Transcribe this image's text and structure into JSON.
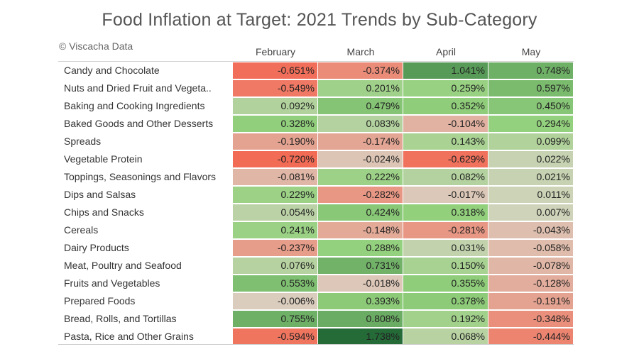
{
  "title": "Food Inflation at Target: 2021 Trends by Sub-Category",
  "credit": "© Viscacha Data",
  "chart_data": {
    "type": "heatmap",
    "title": "Food Inflation at Target: 2021 Trends by Sub-Category",
    "columns": [
      "February",
      "March",
      "April",
      "May"
    ],
    "rows": [
      {
        "label": "Candy and Chocolate",
        "values": [
          -0.651,
          -0.374,
          1.041,
          0.748
        ],
        "display": [
          "-0.651%",
          "-0.374%",
          "1.041%",
          "0.748%"
        ]
      },
      {
        "label": "Nuts and Dried Fruit and Vegeta..",
        "values": [
          -0.549,
          0.201,
          0.259,
          0.597
        ],
        "display": [
          "-0.549%",
          "0.201%",
          "0.259%",
          "0.597%"
        ]
      },
      {
        "label": "Baking and Cooking Ingredients",
        "values": [
          0.092,
          0.479,
          0.352,
          0.45
        ],
        "display": [
          "0.092%",
          "0.479%",
          "0.352%",
          "0.450%"
        ]
      },
      {
        "label": "Baked Goods and Other Desserts",
        "values": [
          0.328,
          0.083,
          -0.104,
          0.294
        ],
        "display": [
          "0.328%",
          "0.083%",
          "-0.104%",
          "0.294%"
        ]
      },
      {
        "label": "Spreads",
        "values": [
          -0.19,
          -0.174,
          0.143,
          0.099
        ],
        "display": [
          "-0.190%",
          "-0.174%",
          "0.143%",
          "0.099%"
        ]
      },
      {
        "label": "Vegetable Protein",
        "values": [
          -0.72,
          -0.024,
          -0.629,
          0.022
        ],
        "display": [
          "-0.720%",
          "-0.024%",
          "-0.629%",
          "0.022%"
        ]
      },
      {
        "label": "Toppings, Seasonings and Flavors",
        "values": [
          -0.081,
          0.222,
          0.082,
          0.021
        ],
        "display": [
          "-0.081%",
          "0.222%",
          "0.082%",
          "0.021%"
        ]
      },
      {
        "label": "Dips and Salsas",
        "values": [
          0.229,
          -0.282,
          -0.017,
          0.011
        ],
        "display": [
          "0.229%",
          "-0.282%",
          "-0.017%",
          "0.011%"
        ]
      },
      {
        "label": "Chips and Snacks",
        "values": [
          0.054,
          0.424,
          0.318,
          0.007
        ],
        "display": [
          "0.054%",
          "0.424%",
          "0.318%",
          "0.007%"
        ]
      },
      {
        "label": "Cereals",
        "values": [
          0.241,
          -0.148,
          -0.281,
          -0.043
        ],
        "display": [
          "0.241%",
          "-0.148%",
          "-0.281%",
          "-0.043%"
        ]
      },
      {
        "label": "Dairy Products",
        "values": [
          -0.237,
          0.288,
          0.031,
          -0.058
        ],
        "display": [
          "-0.237%",
          "0.288%",
          "0.031%",
          "-0.058%"
        ]
      },
      {
        "label": "Meat, Poultry and Seafood",
        "values": [
          0.076,
          0.731,
          0.15,
          -0.078
        ],
        "display": [
          "0.076%",
          "0.731%",
          "0.150%",
          "-0.078%"
        ]
      },
      {
        "label": "Fruits and Vegetables",
        "values": [
          0.553,
          -0.018,
          0.355,
          -0.128
        ],
        "display": [
          "0.553%",
          "-0.018%",
          "0.355%",
          "-0.128%"
        ]
      },
      {
        "label": "Prepared Foods",
        "values": [
          -0.006,
          0.393,
          0.378,
          -0.191
        ],
        "display": [
          "-0.006%",
          "0.393%",
          "0.378%",
          "-0.191%"
        ]
      },
      {
        "label": "Bread, Rolls, and Tortillas",
        "values": [
          0.755,
          0.808,
          0.192,
          -0.348
        ],
        "display": [
          "0.755%",
          "0.808%",
          "0.192%",
          "-0.348%"
        ]
      },
      {
        "label": "Pasta, Rice and Other Grains",
        "values": [
          -0.594,
          1.738,
          0.068,
          -0.444
        ],
        "display": [
          "-0.594%",
          "1.738%",
          "0.068%",
          "-0.444%"
        ]
      }
    ],
    "color_scale": {
      "negative_strong": "#f26b55",
      "neutral": "#d9d3c4",
      "positive_light": "#93d17d",
      "positive_strong": "#246b38"
    }
  }
}
